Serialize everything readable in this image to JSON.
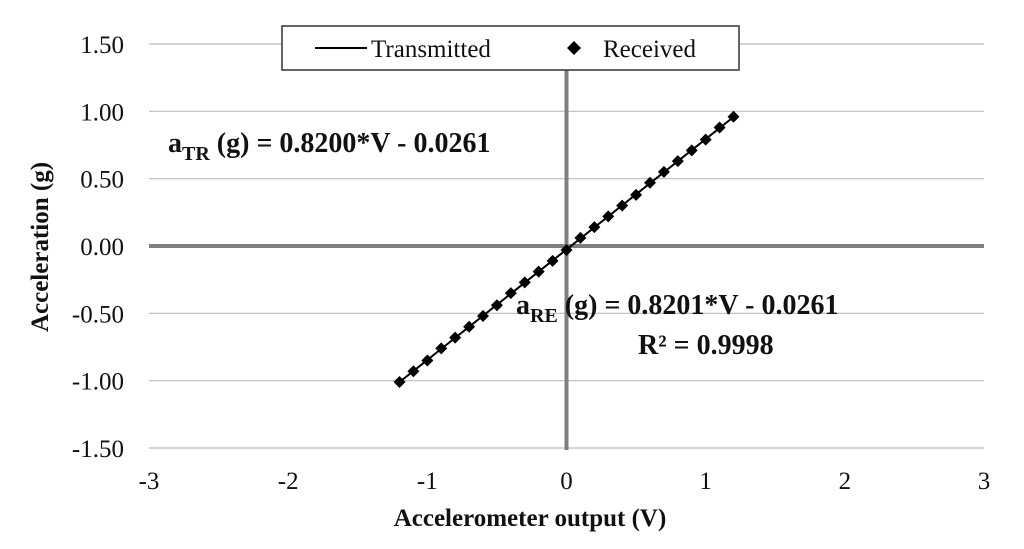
{
  "chart_data": {
    "type": "scatter",
    "xlabel": "Accelerometer output (V)",
    "ylabel": "Acceleration (g)",
    "xlim": [
      -3,
      3
    ],
    "ylim": [
      -1.5,
      1.5
    ],
    "x_ticks": [
      "-3",
      "-2",
      "-1",
      "0",
      "1",
      "2",
      "3"
    ],
    "y_ticks": [
      "1.50",
      "1.00",
      "0.50",
      "0.00",
      "-0.50",
      "-1.00",
      "-1.50"
    ],
    "grid": "horizontal",
    "legend_position": "top-center",
    "series": [
      {
        "name": "Transmitted",
        "style": "line",
        "color": "#000000",
        "x": [
          -1.2,
          1.2
        ],
        "y": [
          -1.0101,
          0.9579
        ]
      },
      {
        "name": "Received",
        "style": "diamond-markers",
        "color": "#000000",
        "x": [
          -1.2,
          -1.1,
          -1.0,
          -0.9,
          -0.8,
          -0.7,
          -0.6,
          -0.5,
          -0.4,
          -0.3,
          -0.2,
          -0.1,
          0.0,
          0.1,
          0.2,
          0.3,
          0.4,
          0.5,
          0.6,
          0.7,
          0.8,
          0.9,
          1.0,
          1.1,
          1.2
        ],
        "y": [
          -1.01,
          -0.93,
          -0.85,
          -0.76,
          -0.68,
          -0.6,
          -0.52,
          -0.44,
          -0.35,
          -0.27,
          -0.19,
          -0.11,
          -0.03,
          0.06,
          0.14,
          0.22,
          0.3,
          0.38,
          0.47,
          0.55,
          0.63,
          0.71,
          0.79,
          0.88,
          0.96
        ]
      }
    ],
    "annotations": {
      "tr_prefix": "a",
      "tr_sub": "TR",
      "tr_rest": " (g)  = 0.8200*V - 0.0261",
      "re_prefix": "a",
      "re_sub": "RE",
      "re_rest": " (g)  = 0.8201*V - 0.0261",
      "r2": "R² = 0.9998"
    }
  }
}
